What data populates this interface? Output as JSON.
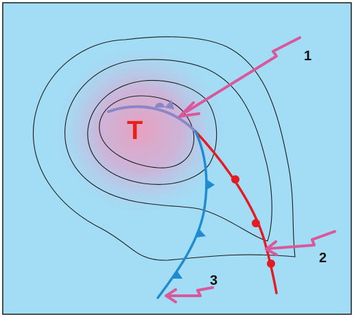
{
  "low_center": {
    "label": "T",
    "color": "#e8201c"
  },
  "colors": {
    "background": "#a3dcf5",
    "border": "#1a1a1a",
    "isobar": "#1a1a1a",
    "low_glow": "#e8a0c0",
    "warm_front": "#e31b23",
    "cold_front": "#1f8bd0",
    "occluded_front": "#8b86c8",
    "wind_arrow": "#d9579a",
    "label_text": "#111111"
  },
  "arrows": [
    {
      "label": "1",
      "points_to": "occluded_front"
    },
    {
      "label": "2",
      "points_to": "warm_front"
    },
    {
      "label": "3",
      "points_to": "cold_front"
    }
  ],
  "fronts": [
    {
      "type": "occluded",
      "color_key": "occluded_front"
    },
    {
      "type": "warm",
      "color_key": "warm_front"
    },
    {
      "type": "cold",
      "color_key": "cold_front"
    }
  ]
}
